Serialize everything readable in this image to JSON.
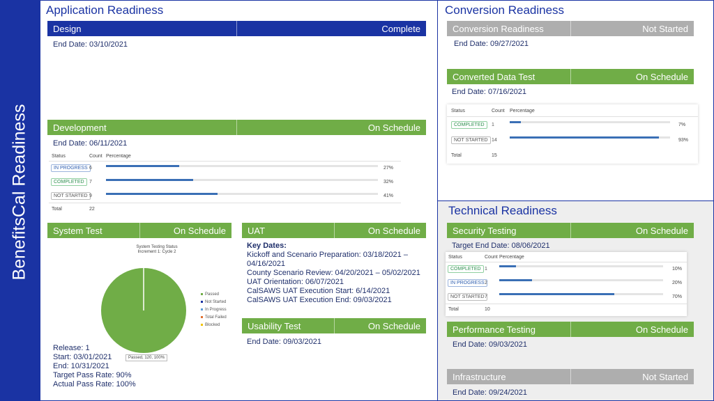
{
  "sidebar": {
    "title": "BenefitsCal Readiness"
  },
  "app": {
    "title": "Application Readiness",
    "design": {
      "label": "Design",
      "status": "Complete",
      "end": "End Date: 03/10/2021"
    },
    "development": {
      "label": "Development",
      "status": "On Schedule",
      "end": "End Date: 06/11/2021",
      "table": {
        "headers": [
          "Status",
          "Count",
          "Percentage"
        ],
        "rows": [
          {
            "status": "IN PROGRESS",
            "count": "6",
            "pct": "27%",
            "value": 27,
            "kind": "ip"
          },
          {
            "status": "COMPLETED",
            "count": "7",
            "pct": "32%",
            "value": 32,
            "kind": "c"
          },
          {
            "status": "NOT STARTED",
            "count": "9",
            "pct": "41%",
            "value": 41,
            "kind": "ns"
          }
        ],
        "total_label": "Total",
        "total": "22"
      }
    },
    "system_test": {
      "label": "System Test",
      "status": "On Schedule",
      "chart_title": "System Testing Status",
      "chart_subtitle": "Increment 1: Cycle 2",
      "legend": [
        "Passed",
        "Not Started",
        "In Progress",
        "Total Failed",
        "Blocked"
      ],
      "pie_label": "Passed, 120, 100%",
      "release": "Release: 1",
      "start": "Start: 03/01/2021",
      "end": "End: 10/31/2021",
      "target": "Target Pass Rate: 90%",
      "actual": "Actual Pass Rate: 100%"
    },
    "uat": {
      "label": "UAT",
      "status": "On Schedule",
      "key_dates_label": "Key Dates:",
      "lines": [
        "Kickoff and Scenario Preparation:  03/18/2021 –",
        "04/16/2021",
        "County Scenario Review: 04/20/2021 – 05/02/2021",
        "UAT Orientation: 06/07/2021",
        "CalSAWS UAT Execution Start: 6/14/2021",
        "CalSAWS UAT Execution End:  09/03/2021"
      ]
    },
    "usability": {
      "label": "Usability Test",
      "status": "On Schedule",
      "end": "End Date: 09/03/2021"
    }
  },
  "conversion": {
    "title": "Conversion Readiness",
    "conv": {
      "label": "Conversion Readiness",
      "status": "Not Started",
      "end": "End Date: 09/27/2021"
    },
    "converted": {
      "label": "Converted Data Test",
      "status": "On Schedule",
      "end": "End Date: 07/16/2021",
      "table": {
        "headers": [
          "Status",
          "Count",
          "Percentage"
        ],
        "rows": [
          {
            "status": "COMPLETED",
            "count": "1",
            "pct": "7%",
            "value": 7,
            "kind": "c"
          },
          {
            "status": "NOT STARTED",
            "count": "14",
            "pct": "93%",
            "value": 93,
            "kind": "ns"
          }
        ],
        "total_label": "Total",
        "total": "15"
      }
    }
  },
  "technical": {
    "title": "Technical Readiness",
    "security": {
      "label": "Security Testing",
      "status": "On Schedule",
      "end": "Target End Date: 08/06/2021",
      "table": {
        "headers": [
          "Status",
          "Count",
          "Percentage"
        ],
        "rows": [
          {
            "status": "COMPLETED",
            "count": "1",
            "pct": "10%",
            "value": 10,
            "kind": "c"
          },
          {
            "status": "IN PROGRESS",
            "count": "2",
            "pct": "20%",
            "value": 20,
            "kind": "ip"
          },
          {
            "status": "NOT STARTED",
            "count": "7",
            "pct": "70%",
            "value": 70,
            "kind": "ns"
          }
        ],
        "total_label": "Total",
        "total": "10"
      }
    },
    "performance": {
      "label": "Performance Testing",
      "status": "On Schedule",
      "end": "End Date: 09/03/2021"
    },
    "infrastructure": {
      "label": "Infrastructure",
      "status": "Not Started",
      "end": "End Date: 09/24/2021"
    }
  },
  "chart_data": {
    "type": "pie",
    "title": "System Testing Status",
    "subtitle": "Increment 1: Cycle 2",
    "categories": [
      "Passed",
      "Not Started",
      "In Progress",
      "Total Failed",
      "Blocked"
    ],
    "values": [
      120,
      0,
      0,
      0,
      0
    ],
    "colors": [
      "#70ad47",
      "#1a33a3",
      "#5b9bd5",
      "#e07030",
      "#f2c400"
    ]
  },
  "colors": {
    "navy": "#1a33a3",
    "green": "#70ad47",
    "grey": "#aeaeae",
    "bar": "#3a6fb5"
  }
}
